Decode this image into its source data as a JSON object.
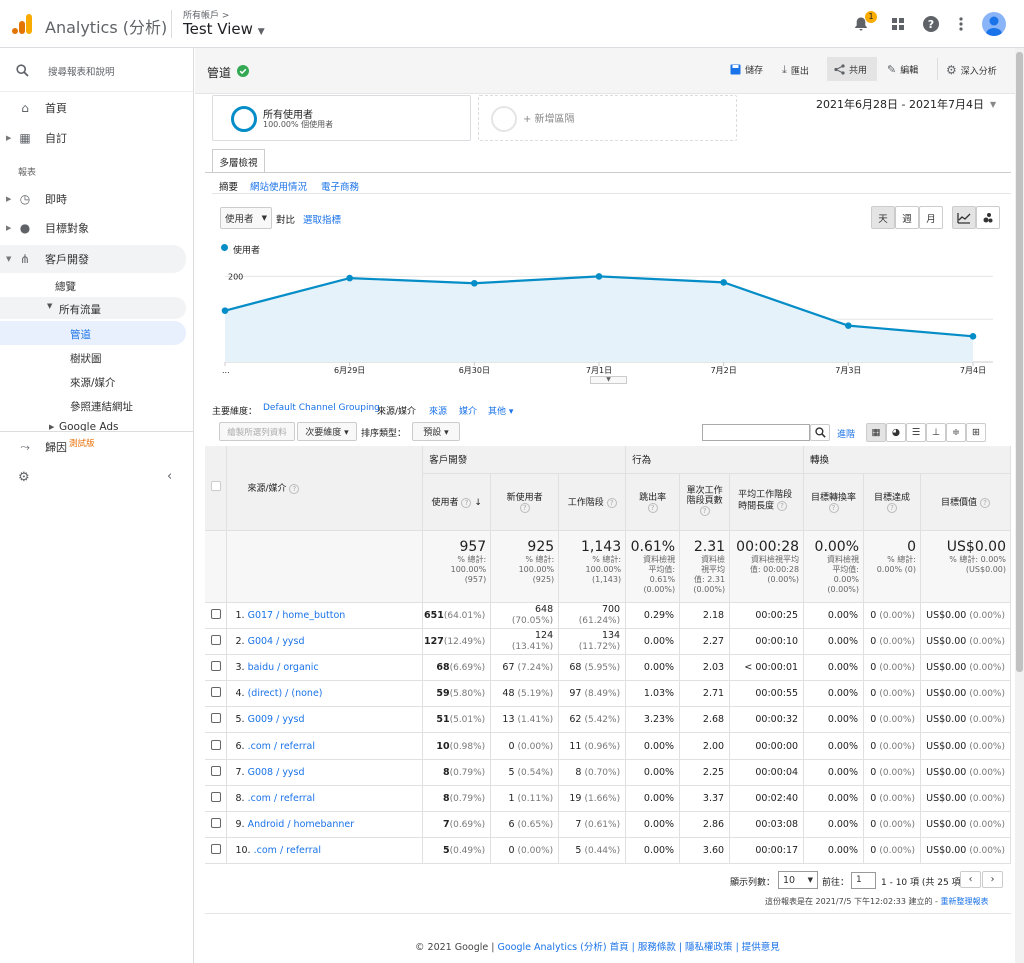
{
  "header": {
    "app_title": "Analytics (分析)",
    "account_label": "所有帳戶 >",
    "view_name": "Test View",
    "notification_count": "1"
  },
  "sidebar": {
    "search_placeholder": "搜尋報表和說明",
    "home": "首頁",
    "custom": "自訂",
    "reports_heading": "報表",
    "realtime": "即時",
    "audience": "目標對象",
    "acquisition": "客戶開發",
    "overview": "總覽",
    "all_traffic": "所有流量",
    "channels": "管道",
    "treemaps": "樹狀圖",
    "source_medium": "來源/媒介",
    "referrals": "參照連結網址",
    "google_ads": "Google Ads",
    "attribution": "歸因",
    "beta": "測試版"
  },
  "report": {
    "title": "管道",
    "save": "儲存",
    "export": "匯出",
    "share": "共用",
    "edit": "編輯",
    "insights": "深入分析",
    "segment_name": "所有使用者",
    "segment_sub": "100.00% 個使用者",
    "add_segment": "+ 新增區隔",
    "date_range": "2021年6月28日 - 2021年7月4日",
    "explorer_tab": "多層檢視",
    "subtabs": [
      "摘要",
      "網站使用情況",
      "電子商務"
    ],
    "metric_select": "使用者",
    "vs_label": "對比",
    "select_metric": "選取指標",
    "day": "天",
    "week": "週",
    "month": "月",
    "legend": "使用者"
  },
  "chart_data": {
    "type": "line",
    "x": [
      "6月28日",
      "6月29日",
      "6月30日",
      "7月1日",
      "7月2日",
      "7月3日",
      "7月4日"
    ],
    "x_tick_labels": [
      "...",
      "6月29日",
      "6月30日",
      "7月1日",
      "7月2日",
      "7月3日",
      "7月4日"
    ],
    "series": [
      {
        "name": "使用者",
        "values": [
          120,
          196,
          184,
          200,
          186,
          85,
          60
        ]
      }
    ],
    "y_ticks": [
      "200",
      "100"
    ],
    "ylim": [
      0,
      250
    ],
    "color": "#058dc7",
    "fill": "#e6f2f9",
    "grid": true
  },
  "dimension_bar": {
    "primary_label": "主要維度：",
    "default_group": "Default Channel Grouping",
    "source_medium": "來源/媒介",
    "source": "來源",
    "medium": "媒介",
    "other": "其他 ▾",
    "plot_rows": "繪製所選列資料",
    "secondary": "次要維度 ▾",
    "sort_type": "排序類型：",
    "default": "預設 ▾",
    "advanced": "進階"
  },
  "table": {
    "groups": {
      "acq": "客戶開發",
      "beh": "行為",
      "conv": "轉換"
    },
    "dim_header": "來源/媒介",
    "columns": [
      "使用者",
      "新使用者",
      "工作階段",
      "跳出率",
      "單次工作階段頁數",
      "平均工作階段時間長度",
      "目標轉換率",
      "目標達成",
      "目標價值"
    ],
    "totals": [
      {
        "big": "957",
        "sm": [
          "% 總計:",
          "100.00%",
          "(957)"
        ]
      },
      {
        "big": "925",
        "sm": [
          "% 總計:",
          "100.00%",
          "(925)"
        ]
      },
      {
        "big": "1,143",
        "sm": [
          "% 總計:",
          "100.00%",
          "(1,143)"
        ]
      },
      {
        "big": "0.61%",
        "sm": [
          "資料檢視",
          "平均值:",
          "0.61%",
          "(0.00%)"
        ]
      },
      {
        "big": "2.31",
        "sm": [
          "資料檢",
          "視平均",
          "值: 2.31",
          "(0.00%)"
        ]
      },
      {
        "big": "00:00:28",
        "sm": [
          "資料檢視平均",
          "值: 00:00:28",
          "(0.00%)"
        ]
      },
      {
        "big": "0.00%",
        "sm": [
          "資料檢視",
          "平均值:",
          "0.00%",
          "(0.00%)"
        ]
      },
      {
        "big": "0",
        "sm": [
          "% 總計:",
          "0.00% (0)"
        ]
      },
      {
        "big": "US$0.00",
        "sm": [
          "% 總計: 0.00%",
          "(US$0.00)"
        ]
      }
    ],
    "rows": [
      {
        "n": "1.",
        "name": "G017 / home_button",
        "users": "651",
        "users_pct": "(64.01%)",
        "new": "648",
        "new_pct": "(70.05%)",
        "sess": "700",
        "sess_pct": "(61.24%)",
        "bounce": "0.29%",
        "pages": "2.18",
        "dur": "00:00:25",
        "cr": "0.00%",
        "goal": "0",
        "goal_pct": "(0.00%)",
        "val": "US$0.00",
        "val_pct": "(0.00%)"
      },
      {
        "n": "2.",
        "name": "G004 / yysd",
        "users": "127",
        "users_pct": "(12.49%)",
        "new": "124",
        "new_pct": "(13.41%)",
        "sess": "134",
        "sess_pct": "(11.72%)",
        "bounce": "0.00%",
        "pages": "2.27",
        "dur": "00:00:10",
        "cr": "0.00%",
        "goal": "0",
        "goal_pct": "(0.00%)",
        "val": "US$0.00",
        "val_pct": "(0.00%)"
      },
      {
        "n": "3.",
        "name": "baidu / organic",
        "users": "68",
        "users_pct": "(6.69%)",
        "new": "67",
        "new_pct": "(7.24%)",
        "sess": "68",
        "sess_pct": "(5.95%)",
        "bounce": "0.00%",
        "pages": "2.03",
        "dur": "< 00:00:01",
        "cr": "0.00%",
        "goal": "0",
        "goal_pct": "(0.00%)",
        "val": "US$0.00",
        "val_pct": "(0.00%)"
      },
      {
        "n": "4.",
        "name": "(direct) / (none)",
        "users": "59",
        "users_pct": "(5.80%)",
        "new": "48",
        "new_pct": "(5.19%)",
        "sess": "97",
        "sess_pct": "(8.49%)",
        "bounce": "1.03%",
        "pages": "2.71",
        "dur": "00:00:55",
        "cr": "0.00%",
        "goal": "0",
        "goal_pct": "(0.00%)",
        "val": "US$0.00",
        "val_pct": "(0.00%)"
      },
      {
        "n": "5.",
        "name": "G009 / yysd",
        "users": "51",
        "users_pct": "(5.01%)",
        "new": "13",
        "new_pct": "(1.41%)",
        "sess": "62",
        "sess_pct": "(5.42%)",
        "bounce": "3.23%",
        "pages": "2.68",
        "dur": "00:00:32",
        "cr": "0.00%",
        "goal": "0",
        "goal_pct": "(0.00%)",
        "val": "US$0.00",
        "val_pct": "(0.00%)"
      },
      {
        "n": "6.",
        "name": ".com / referral",
        "users": "10",
        "users_pct": "(0.98%)",
        "new": "0",
        "new_pct": "(0.00%)",
        "sess": "11",
        "sess_pct": "(0.96%)",
        "bounce": "0.00%",
        "pages": "2.00",
        "dur": "00:00:00",
        "cr": "0.00%",
        "goal": "0",
        "goal_pct": "(0.00%)",
        "val": "US$0.00",
        "val_pct": "(0.00%)"
      },
      {
        "n": "7.",
        "name": "G008 / yysd",
        "users": "8",
        "users_pct": "(0.79%)",
        "new": "5",
        "new_pct": "(0.54%)",
        "sess": "8",
        "sess_pct": "(0.70%)",
        "bounce": "0.00%",
        "pages": "2.25",
        "dur": "00:00:04",
        "cr": "0.00%",
        "goal": "0",
        "goal_pct": "(0.00%)",
        "val": "US$0.00",
        "val_pct": "(0.00%)"
      },
      {
        "n": "8.",
        "name": ".com / referral",
        "users": "8",
        "users_pct": "(0.79%)",
        "new": "1",
        "new_pct": "(0.11%)",
        "sess": "19",
        "sess_pct": "(1.66%)",
        "bounce": "0.00%",
        "pages": "3.37",
        "dur": "00:02:40",
        "cr": "0.00%",
        "goal": "0",
        "goal_pct": "(0.00%)",
        "val": "US$0.00",
        "val_pct": "(0.00%)"
      },
      {
        "n": "9.",
        "name": "Android / homebanner",
        "users": "7",
        "users_pct": "(0.69%)",
        "new": "6",
        "new_pct": "(0.65%)",
        "sess": "7",
        "sess_pct": "(0.61%)",
        "bounce": "0.00%",
        "pages": "2.86",
        "dur": "00:03:08",
        "cr": "0.00%",
        "goal": "0",
        "goal_pct": "(0.00%)",
        "val": "US$0.00",
        "val_pct": "(0.00%)"
      },
      {
        "n": "10.",
        "name": ".com / referral",
        "users": "5",
        "users_pct": "(0.49%)",
        "new": "0",
        "new_pct": "(0.00%)",
        "sess": "5",
        "sess_pct": "(0.44%)",
        "bounce": "0.00%",
        "pages": "3.60",
        "dur": "00:00:17",
        "cr": "0.00%",
        "goal": "0",
        "goal_pct": "(0.00%)",
        "val": "US$0.00",
        "val_pct": "(0.00%)"
      }
    ]
  },
  "pagination": {
    "rows_label": "顯示列數：",
    "rows_value": "10",
    "goto_label": "前往：",
    "goto_value": "1",
    "range": "1 - 10 項 (共 25 項)"
  },
  "report_generated": "這份報表是在 2021/7/5 下午12:02:33 建立的 -",
  "refresh_link": "重新整理報表",
  "footer": {
    "copyright": "© 2021 Google |",
    "links": "Google Analytics (分析) 首頁 | 服務條款 | 隱私權政策 | 提供意見"
  }
}
